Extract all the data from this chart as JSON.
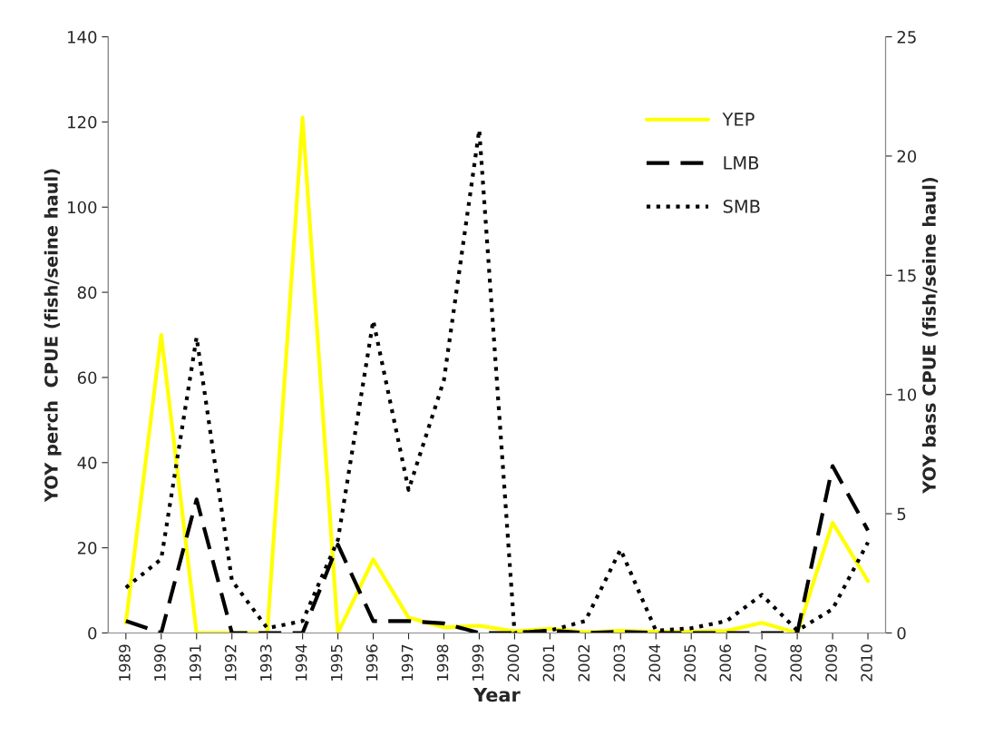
{
  "chart_data": {
    "type": "line",
    "xlabel": "Year",
    "ylabel": "YOY perch  CPUE (fish/seine haul)",
    "y2label": "YOY bass CPUE (fish/seine haul)",
    "categories": [
      "1989",
      "1990",
      "1991",
      "1992",
      "1993",
      "1994",
      "1995",
      "1996",
      "1997",
      "1998",
      "1999",
      "2000",
      "2001",
      "2002",
      "2003",
      "2004",
      "2005",
      "2006",
      "2007",
      "2008",
      "2009",
      "2010"
    ],
    "series": [
      {
        "name": "YEP",
        "color": "#ffff00",
        "line_style": "solid",
        "values": [
          2.4,
          70,
          0,
          0,
          0,
          121,
          0,
          17.3,
          3.6,
          1.3,
          1.7,
          0.4,
          1,
          0.2,
          0.5,
          0.3,
          0.3,
          0.5,
          2.4,
          0,
          25.9,
          12.2
        ]
      },
      {
        "name": "LMB",
        "color": "#000000",
        "line_style": "dashed",
        "axis": "y2",
        "values": [
          0.5,
          0,
          5.6,
          0,
          0,
          0,
          3.7,
          0.5,
          0.5,
          0.4,
          0,
          0,
          0.1,
          0,
          0.05,
          0,
          0,
          0,
          0,
          0,
          7.0,
          4.3
        ]
      },
      {
        "name": "SMB",
        "color": "#000000",
        "line_style": "dotted",
        "axis": "y2",
        "values": [
          1.9,
          3.1,
          12.4,
          2.2,
          0.2,
          0.5,
          3.9,
          13.1,
          6.0,
          10.6,
          21.1,
          0,
          0.1,
          0.5,
          3.5,
          0.1,
          0.2,
          0.5,
          1.6,
          0.1,
          1.0,
          3.8
        ]
      }
    ],
    "ylim": [
      0,
      140
    ],
    "yticks": [
      0,
      20,
      40,
      60,
      80,
      100,
      120,
      140
    ],
    "y2lim": [
      0,
      25
    ],
    "y2ticks": [
      0,
      5,
      10,
      15,
      20,
      25
    ],
    "grid": false,
    "legend": "top right",
    "marker": "none"
  }
}
